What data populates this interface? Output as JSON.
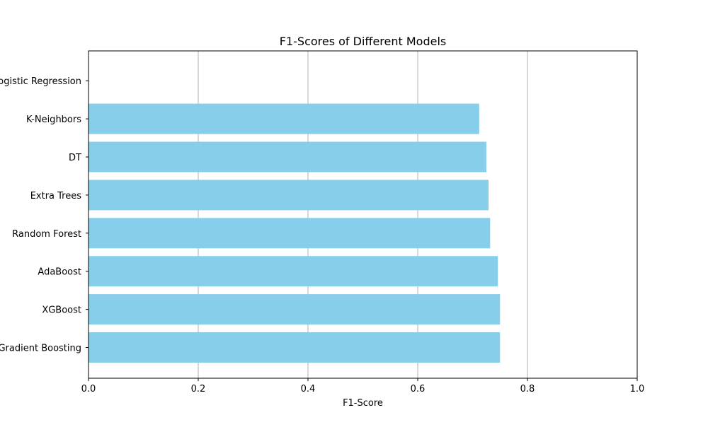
{
  "chart_data": {
    "type": "bar",
    "orientation": "horizontal",
    "title": "F1-Scores of Different Models",
    "xlabel": "F1-Score",
    "ylabel": "",
    "xlim": [
      0,
      1.0
    ],
    "xticks": [
      "0.0",
      "0.2",
      "0.4",
      "0.6",
      "0.8",
      "1.0"
    ],
    "xtick_values": [
      0,
      0.2,
      0.4,
      0.6,
      0.8,
      1.0
    ],
    "grid": "x-axis vertical lines",
    "legend": "none",
    "bar_color": "#87CEEB",
    "categories": [
      "Gradient Boosting",
      "XGBoost",
      "AdaBoost",
      "Random Forest",
      "Extra Trees",
      "DT",
      "K-Neighbors",
      "Logistic Regression"
    ],
    "values": [
      0.75,
      0.75,
      0.746,
      0.732,
      0.729,
      0.725,
      0.712,
      0.0
    ]
  }
}
